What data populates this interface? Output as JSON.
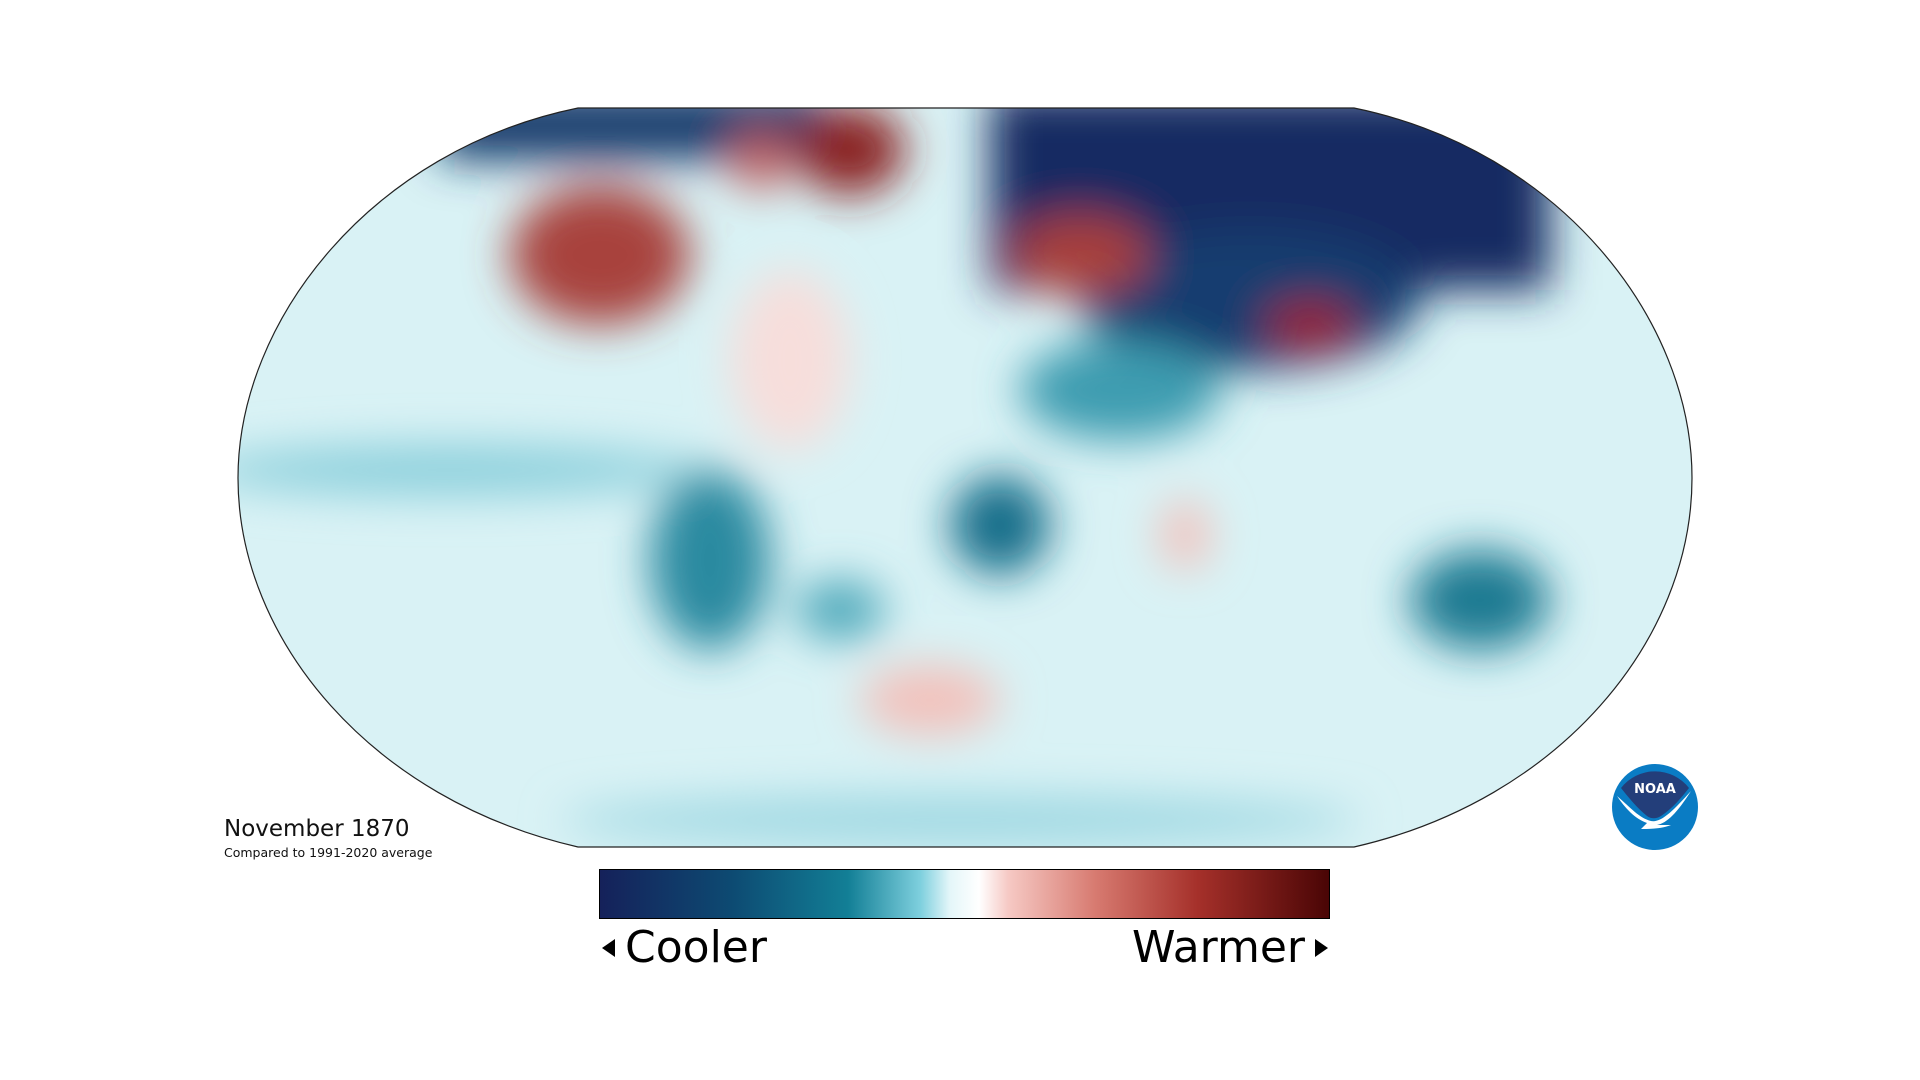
{
  "title": "November 1870",
  "subtitle": "Compared to 1991-2020 average",
  "legend": {
    "cool_label": "Cooler",
    "warm_label": "Warmer",
    "colors": [
      "#15215a",
      "#127f96",
      "#ffffff",
      "#d77a70",
      "#4a0505"
    ]
  },
  "logo": {
    "text": "NOAA",
    "colors": [
      "#233e7a",
      "#0a7cc4"
    ]
  },
  "map": {
    "projection": "Robinson",
    "type": "temperature anomaly"
  }
}
